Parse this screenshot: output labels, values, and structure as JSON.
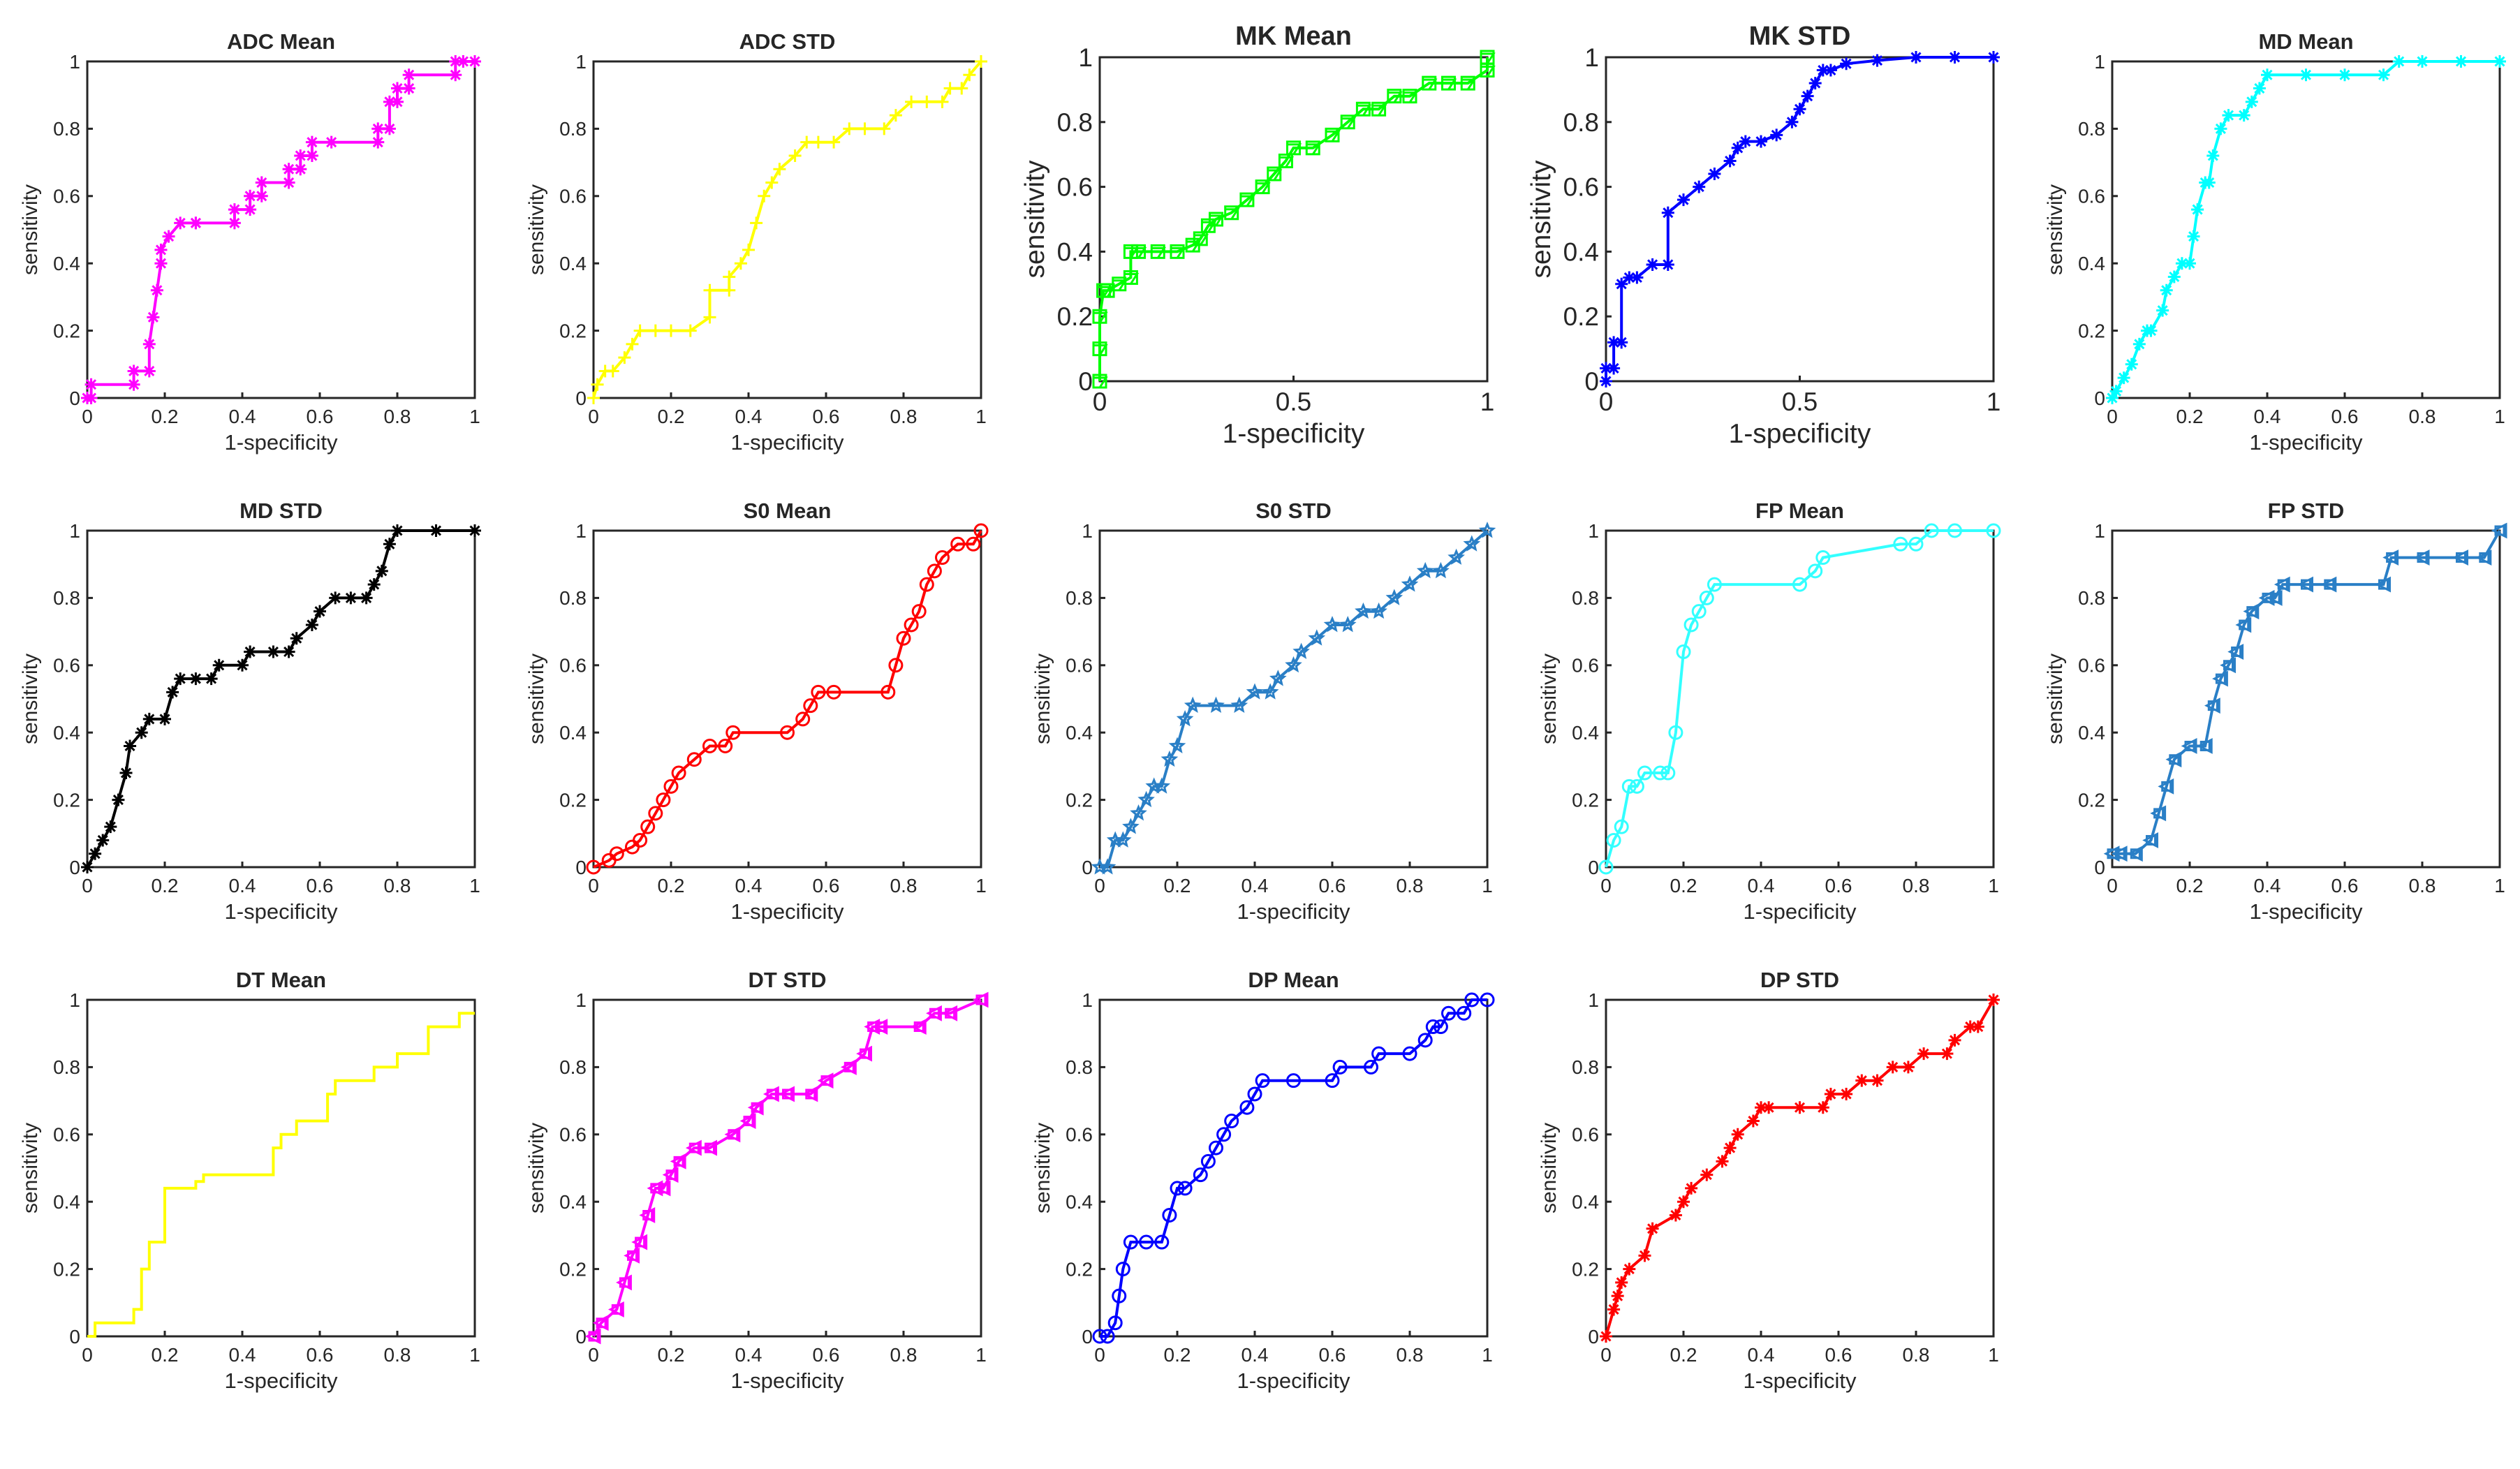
{
  "chart_data": [
    {
      "type": "line",
      "title": "ADC Mean",
      "xlabel": "1-specificity",
      "ylabel": "sensitivity",
      "xlim": [
        0,
        1
      ],
      "ylim": [
        0,
        1
      ],
      "xticks": [
        "0",
        "0.2",
        "0.4",
        "0.6",
        "0.8",
        "1"
      ],
      "yticks": [
        "0",
        "0.2",
        "0.4",
        "0.6",
        "0.8",
        "1"
      ],
      "color": "#ff00ff",
      "marker": "asterisk",
      "x": [
        0,
        0.01,
        0.01,
        0.12,
        0.12,
        0.16,
        0.16,
        0.17,
        0.18,
        0.19,
        0.19,
        0.21,
        0.24,
        0.28,
        0.28,
        0.38,
        0.38,
        0.42,
        0.42,
        0.45,
        0.45,
        0.52,
        0.52,
        0.55,
        0.55,
        0.58,
        0.58,
        0.63,
        0.75,
        0.75,
        0.78,
        0.78,
        0.8,
        0.8,
        0.83,
        0.83,
        0.95,
        0.95,
        0.97,
        1.0
      ],
      "y": [
        0,
        0,
        0.04,
        0.04,
        0.08,
        0.08,
        0.16,
        0.24,
        0.32,
        0.4,
        0.44,
        0.48,
        0.52,
        0.52,
        0.52,
        0.52,
        0.56,
        0.56,
        0.6,
        0.6,
        0.64,
        0.64,
        0.68,
        0.68,
        0.72,
        0.72,
        0.76,
        0.76,
        0.76,
        0.8,
        0.8,
        0.88,
        0.88,
        0.92,
        0.92,
        0.96,
        0.96,
        1.0,
        1.0,
        1.0
      ]
    },
    {
      "type": "line",
      "title": "ADC STD",
      "xlabel": "1-specificity",
      "ylabel": "sensitivity",
      "xlim": [
        0,
        1
      ],
      "ylim": [
        0,
        1
      ],
      "xticks": [
        "0",
        "0.2",
        "0.4",
        "0.6",
        "0.8",
        "1"
      ],
      "yticks": [
        "0",
        "0.2",
        "0.4",
        "0.6",
        "0.8",
        "1"
      ],
      "color": "#ffff00",
      "marker": "plus",
      "x": [
        0,
        0.01,
        0.03,
        0.05,
        0.08,
        0.1,
        0.12,
        0.16,
        0.2,
        0.25,
        0.3,
        0.3,
        0.35,
        0.35,
        0.38,
        0.4,
        0.42,
        0.44,
        0.46,
        0.48,
        0.52,
        0.55,
        0.58,
        0.62,
        0.66,
        0.7,
        0.75,
        0.78,
        0.82,
        0.86,
        0.9,
        0.92,
        0.95,
        0.97,
        1.0
      ],
      "y": [
        0,
        0.04,
        0.08,
        0.08,
        0.12,
        0.16,
        0.2,
        0.2,
        0.2,
        0.2,
        0.24,
        0.32,
        0.32,
        0.36,
        0.4,
        0.44,
        0.52,
        0.6,
        0.64,
        0.68,
        0.72,
        0.76,
        0.76,
        0.76,
        0.8,
        0.8,
        0.8,
        0.84,
        0.88,
        0.88,
        0.88,
        0.92,
        0.92,
        0.96,
        1.0
      ]
    },
    {
      "type": "line",
      "title": "MK Mean",
      "xlabel": "1-specificity",
      "ylabel": "sensitivity",
      "xlim": [
        0,
        1
      ],
      "ylim": [
        0,
        1
      ],
      "xticks": [
        "0",
        "0.5",
        "1"
      ],
      "yticks": [
        "0",
        "0.2",
        "0.4",
        "0.6",
        "0.8",
        "1"
      ],
      "color": "#00ff00",
      "marker": "square-triangle",
      "x": [
        0,
        0,
        0,
        0.01,
        0.02,
        0.05,
        0.08,
        0.08,
        0.1,
        0.15,
        0.2,
        0.24,
        0.26,
        0.28,
        0.3,
        0.34,
        0.38,
        0.42,
        0.45,
        0.48,
        0.5,
        0.55,
        0.6,
        0.64,
        0.68,
        0.72,
        0.76,
        0.8,
        0.85,
        0.9,
        0.95,
        1.0,
        1.0
      ],
      "y": [
        0,
        0.1,
        0.2,
        0.28,
        0.28,
        0.3,
        0.32,
        0.4,
        0.4,
        0.4,
        0.4,
        0.42,
        0.44,
        0.48,
        0.5,
        0.52,
        0.56,
        0.6,
        0.64,
        0.68,
        0.72,
        0.72,
        0.76,
        0.8,
        0.84,
        0.84,
        0.88,
        0.88,
        0.92,
        0.92,
        0.92,
        0.96,
        1.0
      ]
    },
    {
      "type": "line",
      "title": "MK STD",
      "xlabel": "1-specificity",
      "ylabel": "sensitivity",
      "xlim": [
        0,
        1
      ],
      "ylim": [
        0,
        1
      ],
      "xticks": [
        "0",
        "0.5",
        "1"
      ],
      "yticks": [
        "0",
        "0.2",
        "0.4",
        "0.6",
        "0.8",
        "1"
      ],
      "color": "#0000ff",
      "marker": "asterisk",
      "x": [
        0,
        0,
        0.02,
        0.02,
        0.04,
        0.04,
        0.06,
        0.08,
        0.12,
        0.16,
        0.16,
        0.2,
        0.24,
        0.28,
        0.32,
        0.34,
        0.36,
        0.4,
        0.44,
        0.48,
        0.5,
        0.52,
        0.54,
        0.56,
        0.58,
        0.62,
        0.7,
        0.8,
        0.9,
        1.0
      ],
      "y": [
        0,
        0.04,
        0.04,
        0.12,
        0.12,
        0.3,
        0.32,
        0.32,
        0.36,
        0.36,
        0.52,
        0.56,
        0.6,
        0.64,
        0.68,
        0.72,
        0.74,
        0.74,
        0.76,
        0.8,
        0.84,
        0.88,
        0.92,
        0.96,
        0.96,
        0.98,
        0.99,
        1.0,
        1.0,
        1.0
      ]
    },
    {
      "type": "line",
      "title": "MD Mean",
      "xlabel": "1-specificity",
      "ylabel": "sensitivity",
      "xlim": [
        0,
        1
      ],
      "ylim": [
        0,
        1
      ],
      "xticks": [
        "0",
        "0.2",
        "0.4",
        "0.6",
        "0.8",
        "1"
      ],
      "yticks": [
        "0",
        "0.2",
        "0.4",
        "0.6",
        "0.8",
        "1"
      ],
      "color": "#00ffff",
      "marker": "asterisk",
      "x": [
        0,
        0.01,
        0.03,
        0.05,
        0.07,
        0.09,
        0.1,
        0.13,
        0.14,
        0.16,
        0.18,
        0.2,
        0.21,
        0.22,
        0.24,
        0.25,
        0.26,
        0.28,
        0.3,
        0.34,
        0.36,
        0.38,
        0.4,
        0.5,
        0.6,
        0.7,
        0.74,
        0.8,
        0.9,
        1.0
      ],
      "y": [
        0,
        0.02,
        0.06,
        0.1,
        0.16,
        0.2,
        0.2,
        0.26,
        0.32,
        0.36,
        0.4,
        0.4,
        0.48,
        0.56,
        0.64,
        0.64,
        0.72,
        0.8,
        0.84,
        0.84,
        0.88,
        0.92,
        0.96,
        0.96,
        0.96,
        0.96,
        1.0,
        1.0,
        1.0,
        1.0
      ]
    },
    {
      "type": "line",
      "title": "MD STD",
      "xlabel": "1-specificity",
      "ylabel": "sensitivity",
      "xlim": [
        0,
        1
      ],
      "ylim": [
        0,
        1
      ],
      "xticks": [
        "0",
        "0.2",
        "0.4",
        "0.6",
        "0.8",
        "1"
      ],
      "yticks": [
        "0",
        "0.2",
        "0.4",
        "0.6",
        "0.8",
        "1"
      ],
      "color": "#000000",
      "marker": "asterisk",
      "x": [
        0,
        0.02,
        0.04,
        0.06,
        0.08,
        0.1,
        0.11,
        0.14,
        0.16,
        0.2,
        0.22,
        0.24,
        0.28,
        0.32,
        0.34,
        0.4,
        0.42,
        0.48,
        0.52,
        0.54,
        0.58,
        0.6,
        0.64,
        0.68,
        0.72,
        0.74,
        0.76,
        0.78,
        0.8,
        0.9,
        1.0
      ],
      "y": [
        0,
        0.04,
        0.08,
        0.12,
        0.2,
        0.28,
        0.36,
        0.4,
        0.44,
        0.44,
        0.52,
        0.56,
        0.56,
        0.56,
        0.6,
        0.6,
        0.64,
        0.64,
        0.64,
        0.68,
        0.72,
        0.76,
        0.8,
        0.8,
        0.8,
        0.84,
        0.88,
        0.96,
        1.0,
        1.0,
        1.0
      ]
    },
    {
      "type": "line",
      "title": "S0 Mean",
      "xlabel": "1-specificity",
      "ylabel": "sensitivity",
      "xlim": [
        0,
        1
      ],
      "ylim": [
        0,
        1
      ],
      "xticks": [
        "0",
        "0.2",
        "0.4",
        "0.6",
        "0.8",
        "1"
      ],
      "yticks": [
        "0",
        "0.2",
        "0.4",
        "0.6",
        "0.8",
        "1"
      ],
      "color": "#ff0000",
      "marker": "circle",
      "x": [
        0,
        0.04,
        0.06,
        0.1,
        0.12,
        0.14,
        0.16,
        0.18,
        0.2,
        0.22,
        0.26,
        0.3,
        0.34,
        0.36,
        0.5,
        0.54,
        0.56,
        0.58,
        0.62,
        0.76,
        0.78,
        0.8,
        0.82,
        0.84,
        0.86,
        0.88,
        0.9,
        0.94,
        0.98,
        1.0
      ],
      "y": [
        0,
        0.02,
        0.04,
        0.06,
        0.08,
        0.12,
        0.16,
        0.2,
        0.24,
        0.28,
        0.32,
        0.36,
        0.36,
        0.4,
        0.4,
        0.44,
        0.48,
        0.52,
        0.52,
        0.52,
        0.6,
        0.68,
        0.72,
        0.76,
        0.84,
        0.88,
        0.92,
        0.96,
        0.96,
        1.0
      ]
    },
    {
      "type": "line",
      "title": "S0 STD",
      "xlabel": "1-specificity",
      "ylabel": "sensitivity",
      "xlim": [
        0,
        1
      ],
      "ylim": [
        0,
        1
      ],
      "xticks": [
        "0",
        "0.2",
        "0.4",
        "0.6",
        "0.8",
        "1"
      ],
      "yticks": [
        "0",
        "0.2",
        "0.4",
        "0.6",
        "0.8",
        "1"
      ],
      "color": "#2a7fc6",
      "marker": "pentagram",
      "x": [
        0,
        0.02,
        0.04,
        0.06,
        0.08,
        0.1,
        0.12,
        0.14,
        0.16,
        0.18,
        0.2,
        0.22,
        0.24,
        0.3,
        0.36,
        0.4,
        0.44,
        0.46,
        0.5,
        0.52,
        0.56,
        0.6,
        0.64,
        0.68,
        0.72,
        0.76,
        0.8,
        0.84,
        0.88,
        0.92,
        0.96,
        1.0
      ],
      "y": [
        0,
        0,
        0.08,
        0.08,
        0.12,
        0.16,
        0.2,
        0.24,
        0.24,
        0.32,
        0.36,
        0.44,
        0.48,
        0.48,
        0.48,
        0.52,
        0.52,
        0.56,
        0.6,
        0.64,
        0.68,
        0.72,
        0.72,
        0.76,
        0.76,
        0.8,
        0.84,
        0.88,
        0.88,
        0.92,
        0.96,
        1.0
      ]
    },
    {
      "type": "line",
      "title": "FP Mean",
      "xlabel": "1-specificity",
      "ylabel": "sensitivity",
      "xlim": [
        0,
        1
      ],
      "ylim": [
        0,
        1
      ],
      "xticks": [
        "0",
        "0.2",
        "0.4",
        "0.6",
        "0.8",
        "1"
      ],
      "yticks": [
        "0",
        "0.2",
        "0.4",
        "0.6",
        "0.8",
        "1"
      ],
      "color": "#33ffff",
      "marker": "circle",
      "x": [
        0,
        0.02,
        0.04,
        0.06,
        0.08,
        0.1,
        0.14,
        0.16,
        0.18,
        0.2,
        0.22,
        0.24,
        0.26,
        0.28,
        0.5,
        0.54,
        0.56,
        0.76,
        0.8,
        0.84,
        0.9,
        1.0
      ],
      "y": [
        0,
        0.08,
        0.12,
        0.24,
        0.24,
        0.28,
        0.28,
        0.28,
        0.4,
        0.64,
        0.72,
        0.76,
        0.8,
        0.84,
        0.84,
        0.88,
        0.92,
        0.96,
        0.96,
        1.0,
        1.0,
        1.0
      ]
    },
    {
      "type": "line",
      "title": "FP STD",
      "xlabel": "1-specificity",
      "ylabel": "sensitivity",
      "xlim": [
        0,
        1
      ],
      "ylim": [
        0,
        1
      ],
      "xticks": [
        "0",
        "0.2",
        "0.4",
        "0.6",
        "0.8",
        "1"
      ],
      "yticks": [
        "0",
        "0.2",
        "0.4",
        "0.6",
        "0.8",
        "1"
      ],
      "color": "#2a7fc6",
      "marker": "triangle-square",
      "x": [
        0,
        0.02,
        0.06,
        0.1,
        0.12,
        0.14,
        0.16,
        0.2,
        0.24,
        0.26,
        0.28,
        0.3,
        0.32,
        0.34,
        0.36,
        0.4,
        0.42,
        0.44,
        0.5,
        0.56,
        0.7,
        0.72,
        0.8,
        0.9,
        0.96,
        1.0
      ],
      "y": [
        0.04,
        0.04,
        0.04,
        0.08,
        0.16,
        0.24,
        0.32,
        0.36,
        0.36,
        0.48,
        0.56,
        0.6,
        0.64,
        0.72,
        0.76,
        0.8,
        0.8,
        0.84,
        0.84,
        0.84,
        0.84,
        0.92,
        0.92,
        0.92,
        0.92,
        1.0
      ]
    },
    {
      "type": "line",
      "title": "DT Mean",
      "xlabel": "1-specificity",
      "ylabel": "sensitivity",
      "xlim": [
        0,
        1
      ],
      "ylim": [
        0,
        1
      ],
      "xticks": [
        "0",
        "0.2",
        "0.4",
        "0.6",
        "0.8",
        "1"
      ],
      "yticks": [
        "0",
        "0.2",
        "0.4",
        "0.6",
        "0.8",
        "1"
      ],
      "color": "#ffff00",
      "marker": "none",
      "x": [
        0,
        0.02,
        0.02,
        0.12,
        0.12,
        0.14,
        0.14,
        0.16,
        0.16,
        0.2,
        0.2,
        0.28,
        0.28,
        0.3,
        0.3,
        0.48,
        0.48,
        0.5,
        0.5,
        0.54,
        0.54,
        0.62,
        0.62,
        0.64,
        0.64,
        0.74,
        0.74,
        0.8,
        0.8,
        0.88,
        0.88,
        0.96,
        0.96,
        1.0
      ],
      "y": [
        0,
        0,
        0.04,
        0.04,
        0.08,
        0.08,
        0.2,
        0.2,
        0.28,
        0.28,
        0.44,
        0.44,
        0.46,
        0.46,
        0.48,
        0.48,
        0.56,
        0.56,
        0.6,
        0.6,
        0.64,
        0.64,
        0.72,
        0.72,
        0.76,
        0.76,
        0.8,
        0.8,
        0.84,
        0.84,
        0.92,
        0.92,
        0.96,
        0.96
      ]
    },
    {
      "type": "line",
      "title": "DT STD",
      "xlabel": "1-specificity",
      "ylabel": "sensitivity",
      "xlim": [
        0,
        1
      ],
      "ylim": [
        0,
        1
      ],
      "xticks": [
        "0",
        "0.2",
        "0.4",
        "0.6",
        "0.8",
        "1"
      ],
      "yticks": [
        "0",
        "0.2",
        "0.4",
        "0.6",
        "0.8",
        "1"
      ],
      "color": "#ff00ff",
      "marker": "triangle-square",
      "x": [
        0,
        0.02,
        0.06,
        0.08,
        0.1,
        0.12,
        0.14,
        0.16,
        0.18,
        0.2,
        0.22,
        0.26,
        0.3,
        0.36,
        0.4,
        0.42,
        0.46,
        0.5,
        0.56,
        0.6,
        0.66,
        0.7,
        0.72,
        0.74,
        0.84,
        0.88,
        0.92,
        1.0
      ],
      "y": [
        0,
        0.04,
        0.08,
        0.16,
        0.24,
        0.28,
        0.36,
        0.44,
        0.44,
        0.48,
        0.52,
        0.56,
        0.56,
        0.6,
        0.64,
        0.68,
        0.72,
        0.72,
        0.72,
        0.76,
        0.8,
        0.84,
        0.92,
        0.92,
        0.92,
        0.96,
        0.96,
        1.0
      ]
    },
    {
      "type": "line",
      "title": "DP Mean",
      "xlabel": "1-specificity",
      "ylabel": "sensitivity",
      "xlim": [
        0,
        1
      ],
      "ylim": [
        0,
        1
      ],
      "xticks": [
        "0",
        "0.2",
        "0.4",
        "0.6",
        "0.8",
        "1"
      ],
      "yticks": [
        "0",
        "0.2",
        "0.4",
        "0.6",
        "0.8",
        "1"
      ],
      "color": "#0000ff",
      "marker": "circle",
      "x": [
        0,
        0.02,
        0.04,
        0.05,
        0.06,
        0.08,
        0.12,
        0.16,
        0.18,
        0.2,
        0.22,
        0.26,
        0.28,
        0.3,
        0.32,
        0.34,
        0.38,
        0.4,
        0.42,
        0.5,
        0.6,
        0.62,
        0.7,
        0.72,
        0.8,
        0.84,
        0.86,
        0.88,
        0.9,
        0.94,
        0.96,
        1.0
      ],
      "y": [
        0,
        0,
        0.04,
        0.12,
        0.2,
        0.28,
        0.28,
        0.28,
        0.36,
        0.44,
        0.44,
        0.48,
        0.52,
        0.56,
        0.6,
        0.64,
        0.68,
        0.72,
        0.76,
        0.76,
        0.76,
        0.8,
        0.8,
        0.84,
        0.84,
        0.88,
        0.92,
        0.92,
        0.96,
        0.96,
        1.0,
        1.0
      ]
    },
    {
      "type": "line",
      "title": "DP STD",
      "xlabel": "1-specificity",
      "ylabel": "sensitivity",
      "xlim": [
        0,
        1
      ],
      "ylim": [
        0,
        1
      ],
      "xticks": [
        "0",
        "0.2",
        "0.4",
        "0.6",
        "0.8",
        "1"
      ],
      "yticks": [
        "0",
        "0.2",
        "0.4",
        "0.6",
        "0.8",
        "1"
      ],
      "color": "#ff0000",
      "marker": "asterisk",
      "x": [
        0,
        0.02,
        0.03,
        0.04,
        0.06,
        0.1,
        0.12,
        0.18,
        0.2,
        0.22,
        0.26,
        0.3,
        0.32,
        0.34,
        0.38,
        0.4,
        0.42,
        0.5,
        0.56,
        0.58,
        0.62,
        0.66,
        0.7,
        0.74,
        0.78,
        0.82,
        0.88,
        0.9,
        0.94,
        0.96,
        1.0
      ],
      "y": [
        0,
        0.08,
        0.12,
        0.16,
        0.2,
        0.24,
        0.32,
        0.36,
        0.4,
        0.44,
        0.48,
        0.52,
        0.56,
        0.6,
        0.64,
        0.68,
        0.68,
        0.68,
        0.68,
        0.72,
        0.72,
        0.76,
        0.76,
        0.8,
        0.8,
        0.84,
        0.84,
        0.88,
        0.92,
        0.92,
        1.0
      ]
    }
  ]
}
